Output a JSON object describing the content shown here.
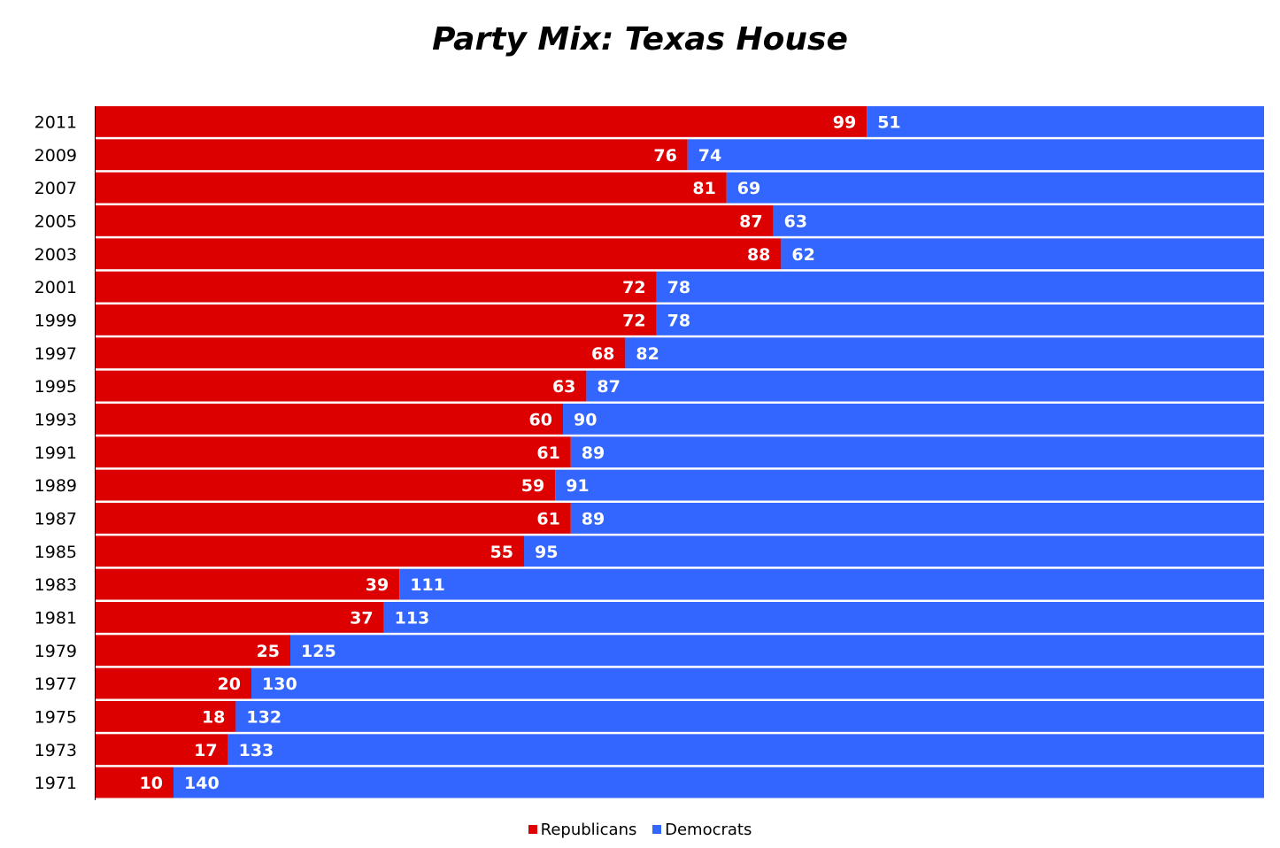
{
  "chart_data": {
    "type": "bar",
    "orientation": "horizontal",
    "stacked": true,
    "title": "Party Mix: Texas House",
    "categories": [
      "2011",
      "2009",
      "2007",
      "2005",
      "2003",
      "2001",
      "1999",
      "1997",
      "1995",
      "1993",
      "1991",
      "1989",
      "1987",
      "1985",
      "1983",
      "1981",
      "1979",
      "1977",
      "1975",
      "1973",
      "1971"
    ],
    "series": [
      {
        "name": "Republicans",
        "color": "#dd0000",
        "values": [
          99,
          76,
          81,
          87,
          88,
          72,
          72,
          68,
          63,
          60,
          61,
          59,
          61,
          55,
          39,
          37,
          25,
          20,
          18,
          17,
          10
        ]
      },
      {
        "name": "Democrats",
        "color": "#3366ff",
        "values": [
          51,
          74,
          69,
          63,
          62,
          78,
          78,
          82,
          87,
          90,
          89,
          91,
          89,
          95,
          111,
          113,
          125,
          130,
          132,
          133,
          140
        ]
      }
    ],
    "xlim": [
      0,
      150
    ],
    "grid": false,
    "legend_position": "bottom"
  }
}
